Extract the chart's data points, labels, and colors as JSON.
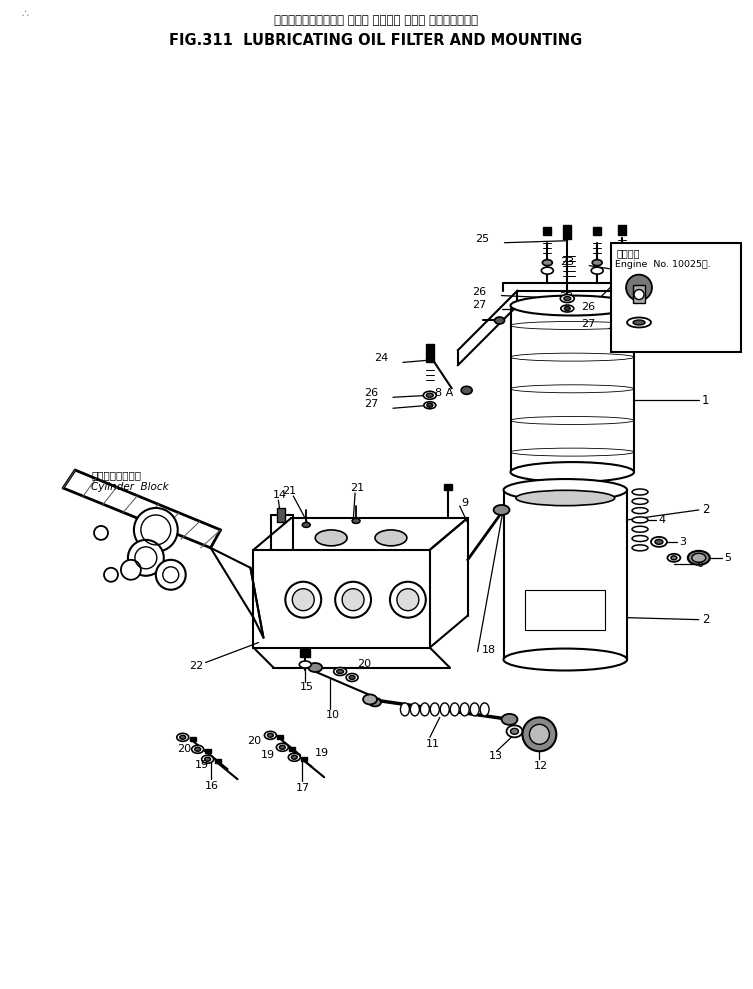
{
  "title_japanese": "ルーブリケーティング オイル フィルタ および マウンティング",
  "title_english": "FIG.311  LUBRICATING OIL FILTER AND MOUNTING",
  "background_color": "#ffffff",
  "line_color": "#000000",
  "fig_width": 7.53,
  "fig_height": 9.89,
  "dpi": 100,
  "inset_label_japanese": "適用号番",
  "inset_label_english": "Engine  No. 10025～.",
  "cylinder_block_japanese": "シリンダブロック",
  "cylinder_block_english": "Cylinder  Block"
}
